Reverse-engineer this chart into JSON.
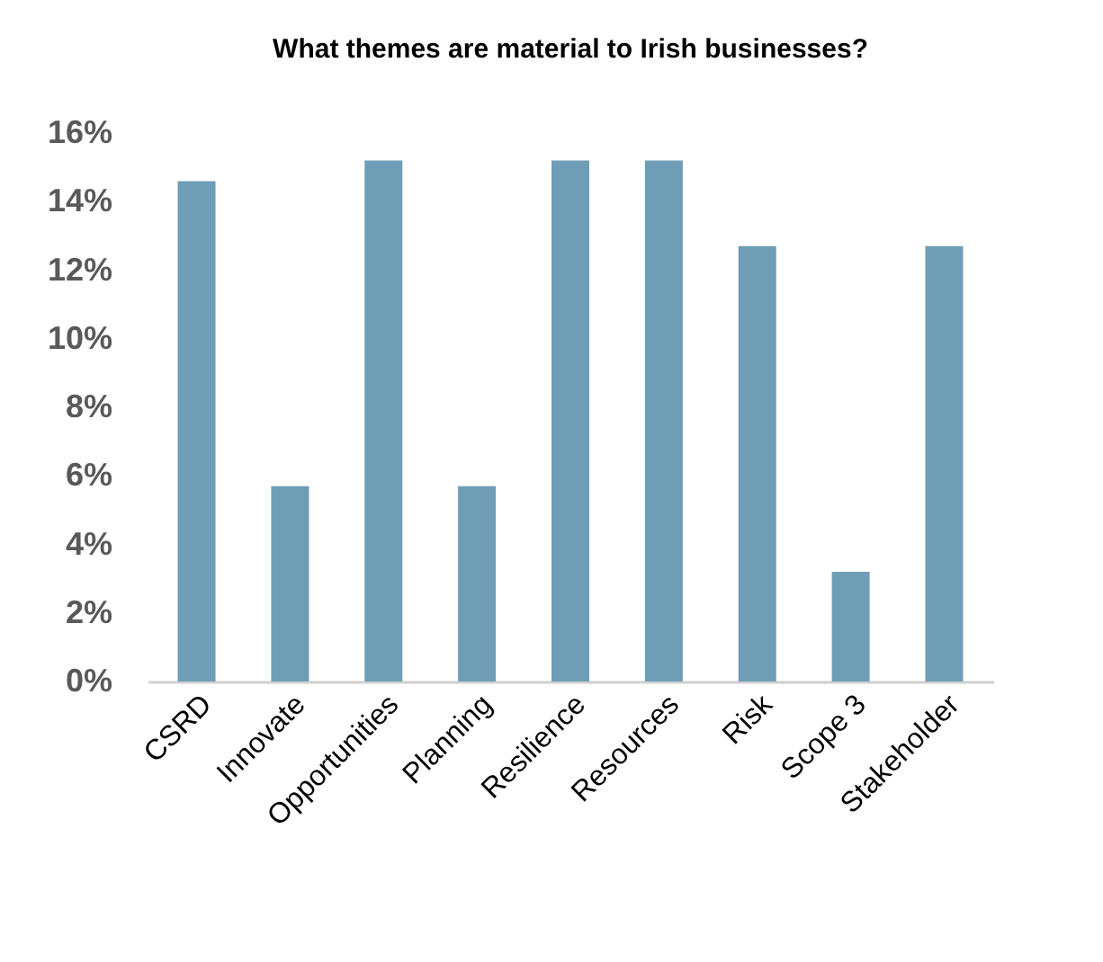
{
  "chart_data": {
    "type": "bar",
    "title": "What themes are material to Irish businesses?",
    "categories": [
      "CSRD",
      "Innovate",
      "Opportunities",
      "Planning",
      "Resilience",
      "Resources",
      "Risk",
      "Scope 3",
      "Stakeholder"
    ],
    "values": [
      14.6,
      5.7,
      15.2,
      5.7,
      15.2,
      15.2,
      12.7,
      3.2,
      12.7
    ],
    "color": "#6f9db5",
    "ylim": [
      0,
      16
    ],
    "yticks": [
      {
        "value": 0,
        "label": "0%"
      },
      {
        "value": 2,
        "label": "2%"
      },
      {
        "value": 4,
        "label": "4%"
      },
      {
        "value": 6,
        "label": "6%"
      },
      {
        "value": 8,
        "label": "8%"
      },
      {
        "value": 10,
        "label": "10%"
      },
      {
        "value": 12,
        "label": "12%"
      },
      {
        "value": 14,
        "label": "14%"
      },
      {
        "value": 16,
        "label": "16%"
      }
    ],
    "grid": false
  }
}
